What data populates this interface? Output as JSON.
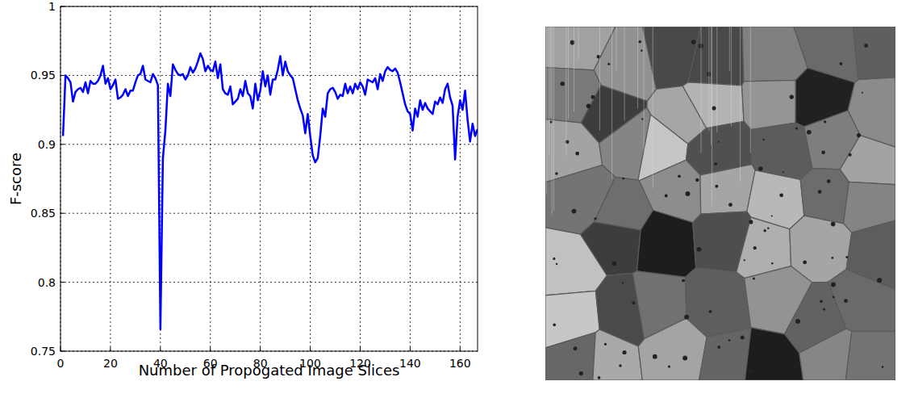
{
  "chart_data": {
    "type": "line",
    "x_label": "Number of Propogated Image Slices",
    "y_label": "F-score",
    "color": "#0000ff",
    "grid": true,
    "xlim": [
      0,
      167
    ],
    "ylim": [
      0.75,
      1
    ],
    "xticks": [
      0,
      20,
      40,
      60,
      80,
      100,
      120,
      140,
      160
    ],
    "yticks": [
      0.75,
      0.8,
      0.85,
      0.9,
      0.95,
      1
    ],
    "x": [
      1,
      2,
      3,
      4,
      5,
      6,
      7,
      8,
      9,
      10,
      11,
      12,
      13,
      14,
      15,
      16,
      17,
      18,
      19,
      20,
      21,
      22,
      23,
      24,
      25,
      26,
      27,
      28,
      29,
      30,
      31,
      32,
      33,
      34,
      35,
      36,
      37,
      38,
      39,
      40,
      41,
      42,
      43,
      44,
      45,
      46,
      47,
      48,
      49,
      50,
      51,
      52,
      53,
      54,
      55,
      56,
      57,
      58,
      59,
      60,
      61,
      62,
      63,
      64,
      65,
      66,
      67,
      68,
      69,
      70,
      71,
      72,
      73,
      74,
      75,
      76,
      77,
      78,
      79,
      80,
      81,
      82,
      83,
      84,
      85,
      86,
      87,
      88,
      89,
      90,
      91,
      92,
      93,
      94,
      95,
      96,
      97,
      98,
      99,
      100,
      101,
      102,
      103,
      104,
      105,
      106,
      107,
      108,
      109,
      110,
      111,
      112,
      113,
      114,
      115,
      116,
      117,
      118,
      119,
      120,
      121,
      122,
      123,
      124,
      125,
      126,
      127,
      128,
      129,
      130,
      131,
      132,
      133,
      134,
      135,
      136,
      137,
      138,
      139,
      140,
      141,
      142,
      143,
      144,
      145,
      146,
      147,
      148,
      149,
      150,
      151,
      152,
      153,
      154,
      155,
      156,
      157,
      158,
      159,
      160,
      161,
      162,
      163,
      164,
      165,
      166,
      167
    ],
    "values": [
      0.906,
      0.95,
      0.948,
      0.945,
      0.931,
      0.938,
      0.94,
      0.941,
      0.938,
      0.945,
      0.937,
      0.946,
      0.944,
      0.944,
      0.946,
      0.95,
      0.957,
      0.944,
      0.948,
      0.94,
      0.943,
      0.947,
      0.933,
      0.934,
      0.936,
      0.94,
      0.935,
      0.939,
      0.939,
      0.945,
      0.95,
      0.951,
      0.957,
      0.947,
      0.946,
      0.945,
      0.951,
      0.948,
      0.943,
      0.766,
      0.89,
      0.91,
      0.944,
      0.935,
      0.958,
      0.954,
      0.951,
      0.95,
      0.951,
      0.947,
      0.95,
      0.956,
      0.952,
      0.955,
      0.96,
      0.966,
      0.962,
      0.953,
      0.957,
      0.954,
      0.953,
      0.96,
      0.948,
      0.958,
      0.94,
      0.937,
      0.936,
      0.942,
      0.929,
      0.931,
      0.933,
      0.94,
      0.935,
      0.946,
      0.937,
      0.935,
      0.926,
      0.944,
      0.932,
      0.939,
      0.953,
      0.942,
      0.95,
      0.936,
      0.947,
      0.947,
      0.954,
      0.964,
      0.95,
      0.96,
      0.953,
      0.95,
      0.948,
      0.94,
      0.932,
      0.926,
      0.921,
      0.908,
      0.922,
      0.906,
      0.892,
      0.887,
      0.89,
      0.906,
      0.926,
      0.92,
      0.937,
      0.94,
      0.941,
      0.938,
      0.933,
      0.936,
      0.935,
      0.944,
      0.937,
      0.942,
      0.937,
      0.944,
      0.94,
      0.945,
      0.942,
      0.936,
      0.947,
      0.946,
      0.945,
      0.948,
      0.94,
      0.951,
      0.946,
      0.953,
      0.956,
      0.954,
      0.953,
      0.955,
      0.952,
      0.945,
      0.937,
      0.929,
      0.924,
      0.922,
      0.91,
      0.926,
      0.92,
      0.932,
      0.925,
      0.93,
      0.926,
      0.924,
      0.922,
      0.931,
      0.929,
      0.934,
      0.93,
      0.94,
      0.944,
      0.934,
      0.928,
      0.889,
      0.92,
      0.932,
      0.925,
      0.939,
      0.918,
      0.902,
      0.915,
      0.906,
      0.911
    ]
  }
}
